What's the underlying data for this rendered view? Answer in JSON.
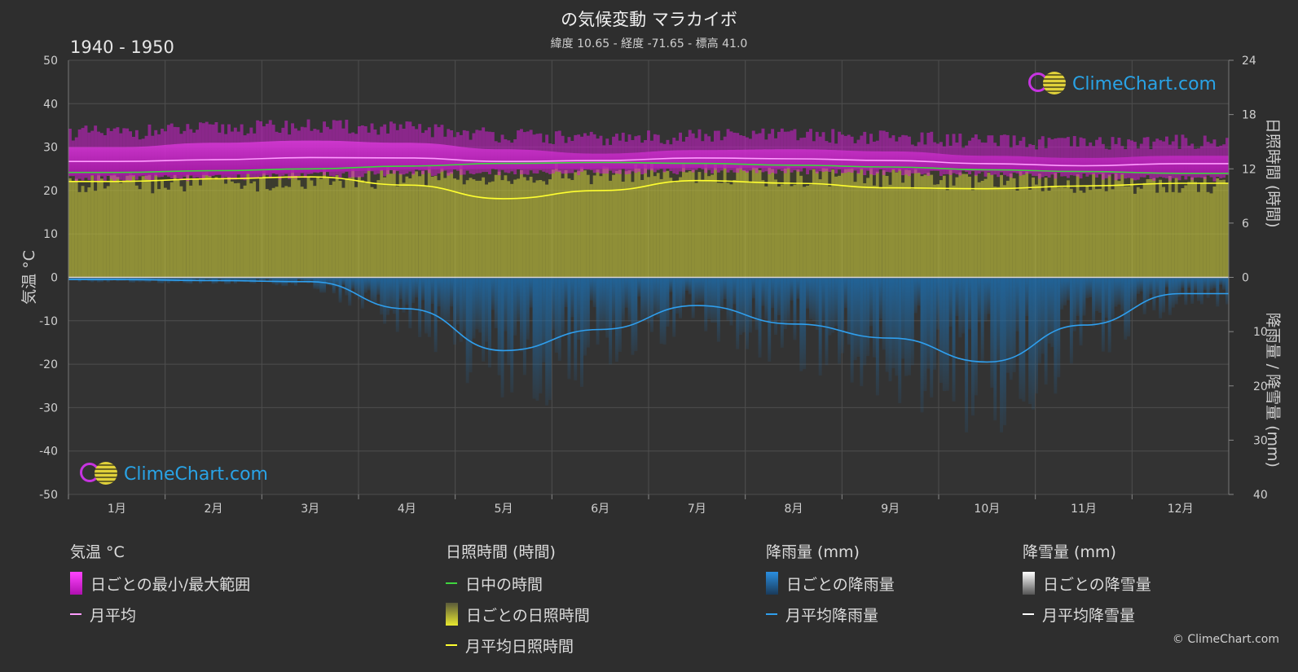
{
  "header": {
    "title": "の気候変動 マラカイボ",
    "subtitle": "緯度 10.65 - 経度 -71.65 - 標高 41.0",
    "period": "1940 - 1950"
  },
  "brand": {
    "name": "ClimeChart.com",
    "copyright": "© ClimeChart.com"
  },
  "colors": {
    "background": "#2e2e2e",
    "temp_range": "#d21ed2",
    "temp_mean": "#ff9cff",
    "daylight": "#3ed63e",
    "sunshine": "#c8c83a",
    "sunshine_mean": "#ffff30",
    "rain": "#1f7bc4",
    "rain_mean": "#2f9fee",
    "snow_mean": "#ffffff"
  },
  "chart_data": {
    "type": "area",
    "categories": [
      "1月",
      "2月",
      "3月",
      "4月",
      "5月",
      "6月",
      "7月",
      "8月",
      "9月",
      "10月",
      "11月",
      "12月"
    ],
    "axes": {
      "left": {
        "label": "気温 °C",
        "min": -50,
        "max": 50,
        "ticks": [
          50,
          40,
          30,
          20,
          10,
          0,
          -10,
          -20,
          -30,
          -40,
          -50
        ]
      },
      "right_top": {
        "label": "日照時間 (時間)",
        "min": 0,
        "max": 24,
        "ticks": [
          24,
          18,
          12,
          6,
          0
        ]
      },
      "right_bottom": {
        "label": "降雨量 / 降雪量 (mm)",
        "min": 0,
        "max": 40,
        "ticks": [
          0,
          10,
          20,
          30,
          40
        ]
      }
    },
    "grid": true,
    "series": [
      {
        "name": "日ごとの最小/最大範囲",
        "unit": "°C",
        "min": [
          23.5,
          23.6,
          24.2,
          24.8,
          25.0,
          25.0,
          25.2,
          25.2,
          24.9,
          24.5,
          24.0,
          23.6
        ],
        "max": [
          31.5,
          32.5,
          33.0,
          32.5,
          31.0,
          30.0,
          30.8,
          31.0,
          30.5,
          29.5,
          29.0,
          29.5
        ]
      },
      {
        "name": "月平均",
        "unit": "°C",
        "values": [
          26.7,
          27.1,
          27.6,
          27.5,
          26.7,
          26.9,
          27.5,
          27.3,
          26.9,
          26.2,
          25.7,
          26.2
        ]
      },
      {
        "name": "日中の時間",
        "unit": "時間",
        "values": [
          11.6,
          11.8,
          12.0,
          12.3,
          12.6,
          12.7,
          12.6,
          12.4,
          12.2,
          11.9,
          11.7,
          11.5
        ]
      },
      {
        "name": "月平均日照時間",
        "unit": "時間",
        "values": [
          10.6,
          10.9,
          11.1,
          10.2,
          8.7,
          9.6,
          10.7,
          10.4,
          9.9,
          9.8,
          10.1,
          10.4
        ]
      },
      {
        "name": "月平均降雨量",
        "unit": "mm",
        "values": [
          0.4,
          0.6,
          0.8,
          5.8,
          13.5,
          9.6,
          5.2,
          8.6,
          11.2,
          15.6,
          8.8,
          3.0
        ]
      },
      {
        "name": "月平均降雪量",
        "unit": "mm",
        "values": [
          0,
          0,
          0,
          0,
          0,
          0,
          0,
          0,
          0,
          0,
          0,
          0
        ]
      }
    ]
  },
  "legend": {
    "temp": {
      "title": "気温 °C",
      "range": "日ごとの最小/最大範囲",
      "mean": "月平均"
    },
    "sun": {
      "title": "日照時間 (時間)",
      "daylight": "日中の時間",
      "daily": "日ごとの日照時間",
      "mean": "月平均日照時間"
    },
    "rain": {
      "title": "降雨量 (mm)",
      "daily": "日ごとの降雨量",
      "mean": "月平均降雨量"
    },
    "snow": {
      "title": "降雪量 (mm)",
      "daily": "日ごとの降雪量",
      "mean": "月平均降雪量"
    }
  }
}
